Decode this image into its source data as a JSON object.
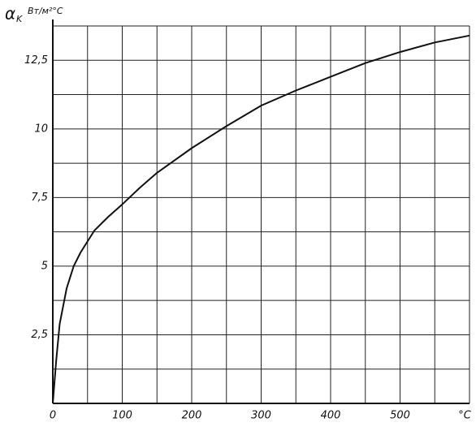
{
  "chart_data": {
    "type": "line",
    "y_label": "α",
    "y_label_sub": "K",
    "y_unit": "Вт/м²°С",
    "x_label": "°C",
    "x": [
      0,
      5,
      10,
      20,
      30,
      40,
      60,
      80,
      100,
      125,
      150,
      200,
      250,
      300,
      350,
      400,
      450,
      500,
      550,
      600
    ],
    "series": [
      {
        "color": "#111111",
        "values": [
          0,
          1.6,
          2.9,
          4.2,
          5.0,
          5.5,
          6.3,
          6.8,
          7.25,
          7.85,
          8.4,
          9.3,
          10.1,
          10.85,
          11.4,
          11.9,
          12.4,
          12.8,
          13.15,
          13.4
        ]
      }
    ],
    "xlim": [
      0,
      600
    ],
    "ylim": [
      0,
      13.75
    ],
    "xticks": [
      0,
      100,
      200,
      300,
      400,
      500
    ],
    "yticks": [
      {
        "value": 2.5,
        "label": "2,5"
      },
      5,
      {
        "value": 7.5,
        "label": "7,5"
      },
      10,
      {
        "value": 12.5,
        "label": "12,5"
      }
    ],
    "x_grid": [
      0,
      50,
      100,
      150,
      200,
      250,
      300,
      350,
      400,
      450,
      500,
      550,
      600
    ],
    "y_grid": [
      0,
      1.25,
      2.5,
      3.75,
      5,
      6.25,
      7.5,
      8.75,
      10,
      11.25,
      12.5,
      13.75
    ],
    "grid": true
  }
}
